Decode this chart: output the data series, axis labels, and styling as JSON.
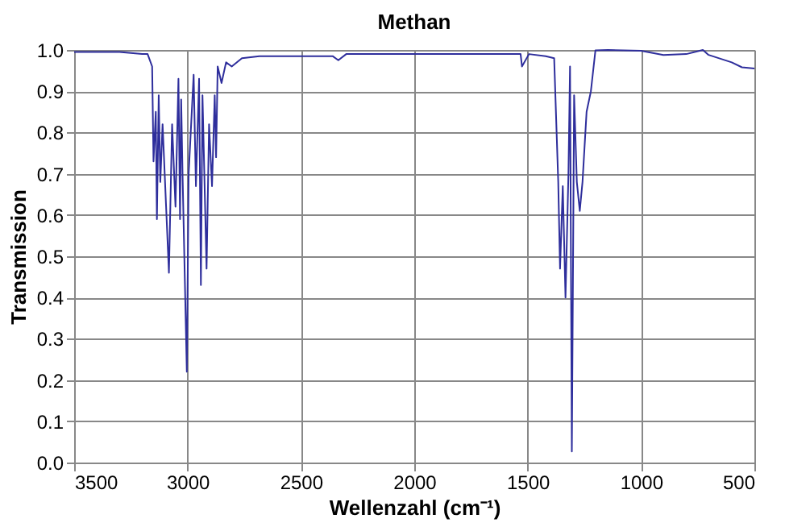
{
  "chart_data": {
    "type": "line",
    "title": "Methan",
    "xlabel": "Wellenzahl (cm⁻¹)",
    "ylabel": "Transmission",
    "x": [
      3500,
      3300,
      3200,
      3176,
      3156,
      3150,
      3140,
      3135,
      3127,
      3120,
      3110,
      3082,
      3068,
      3053,
      3040,
      3033,
      3028,
      3022,
      3003,
      2995,
      2973,
      2963,
      2949,
      2941,
      2934,
      2916,
      2905,
      2892,
      2880,
      2874,
      2867,
      2850,
      2830,
      2805,
      2760,
      2683,
      2500,
      2360,
      2335,
      2300,
      2100,
      1900,
      1700,
      1531,
      1525,
      1494,
      1420,
      1383,
      1365,
      1357,
      1345,
      1333,
      1320,
      1313,
      1305,
      1295,
      1283,
      1270,
      1258,
      1240,
      1221,
      1201,
      1146,
      1000,
      901,
      800,
      727,
      702,
      600,
      555,
      500
    ],
    "series": [
      {
        "color": "#2e2e9c",
        "values": [
          0.995,
          0.995,
          0.99,
          0.99,
          0.96,
          0.73,
          0.85,
          0.59,
          0.89,
          0.68,
          0.82,
          0.46,
          0.82,
          0.62,
          0.93,
          0.59,
          0.88,
          0.7,
          0.22,
          0.7,
          0.94,
          0.67,
          0.93,
          0.43,
          0.89,
          0.47,
          0.82,
          0.67,
          0.89,
          0.74,
          0.96,
          0.92,
          0.97,
          0.96,
          0.98,
          0.985,
          0.985,
          0.985,
          0.975,
          0.99,
          0.99,
          0.99,
          0.99,
          0.99,
          0.96,
          0.99,
          0.985,
          0.98,
          0.68,
          0.47,
          0.67,
          0.4,
          0.7,
          0.96,
          0.027,
          0.89,
          0.68,
          0.61,
          0.68,
          0.85,
          0.9,
          0.999,
          1.0,
          0.998,
          0.988,
          0.99,
          1.0,
          0.988,
          0.97,
          0.958,
          0.955
        ]
      }
    ],
    "xlim": [
      3500,
      500
    ],
    "xticks": [
      3500,
      3000,
      2500,
      2000,
      1500,
      1000,
      500
    ],
    "ylim": [
      0,
      1
    ],
    "yticks": [
      {
        "value": 0,
        "label": "0.0"
      },
      {
        "value": 0.1,
        "label": "0.1"
      },
      {
        "value": 0.2,
        "label": "0.2"
      },
      {
        "value": 0.3,
        "label": "0.3"
      },
      {
        "value": 0.4,
        "label": "0.4"
      },
      {
        "value": 0.5,
        "label": "0.5"
      },
      {
        "value": 0.6,
        "label": "0.6"
      },
      {
        "value": 0.7,
        "label": "0.7"
      },
      {
        "value": 0.8,
        "label": "0.8"
      },
      {
        "value": 0.9,
        "label": "0.9"
      },
      {
        "value": 1,
        "label": "1.0"
      }
    ],
    "grid": true,
    "legend": false,
    "marker": "none",
    "line_style": "solid"
  }
}
